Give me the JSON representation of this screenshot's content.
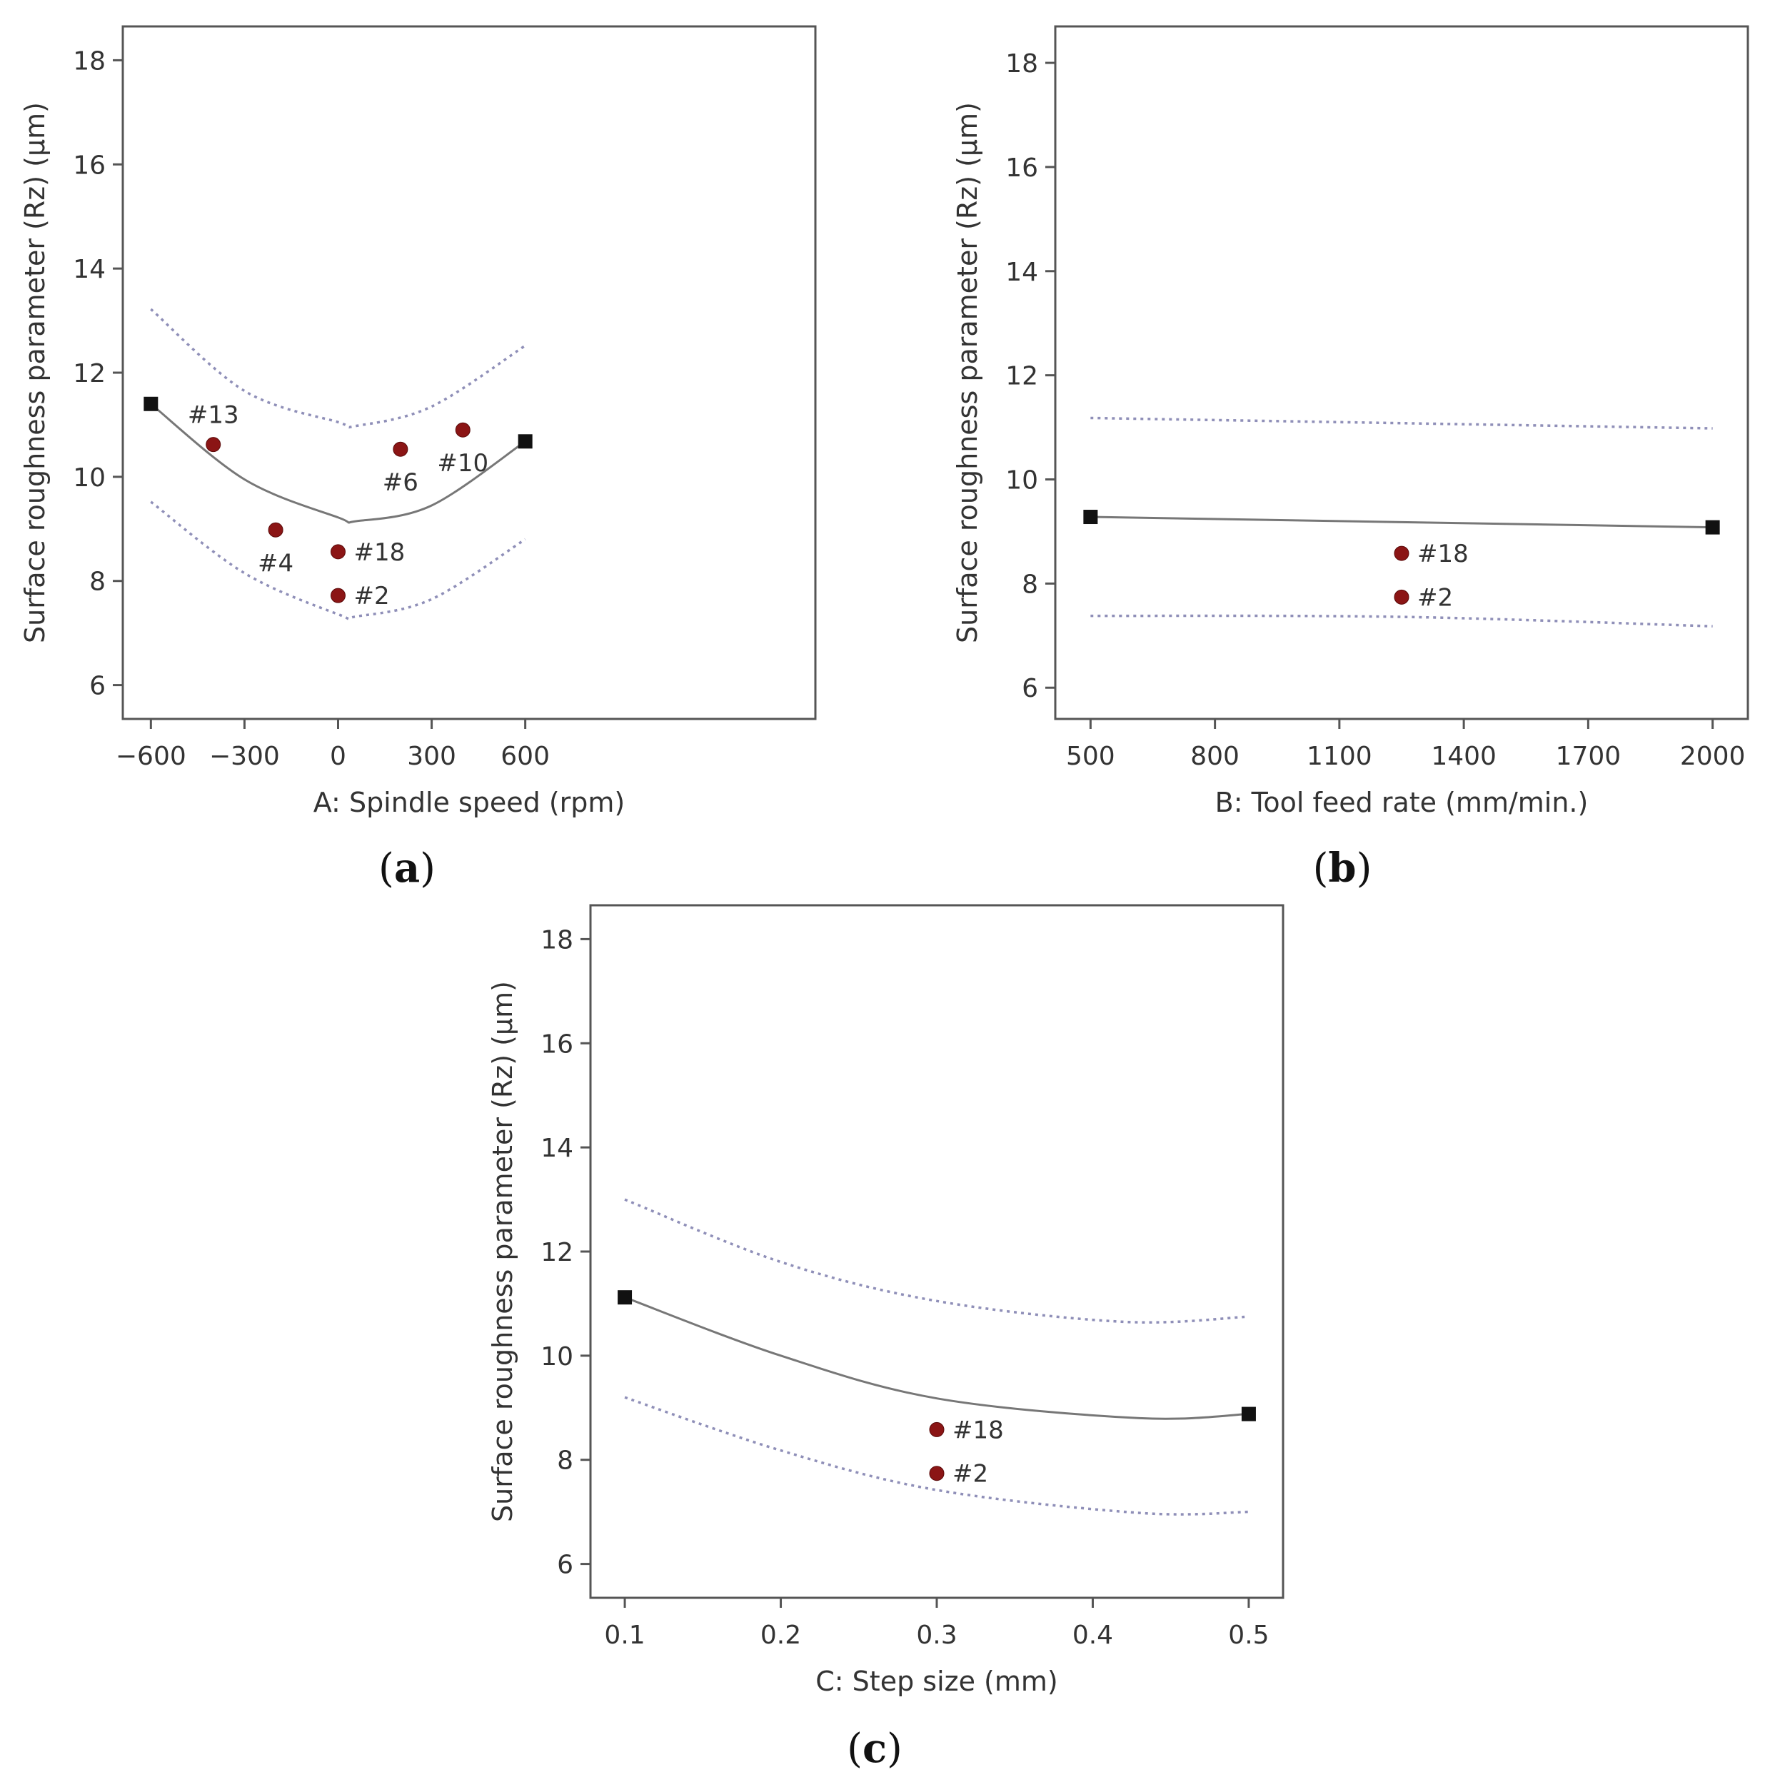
{
  "chart_data": [
    {
      "id": "a",
      "type": "line",
      "panel_label": "a",
      "xlabel": "A: Spindle speed (rpm)",
      "ylabel": "Surface roughness parameter (Rz) (µm)",
      "xlim": [
        -690,
        1530
      ],
      "ylim": [
        5.35,
        18.65
      ],
      "xticks": [
        -600,
        -300,
        0,
        300,
        600
      ],
      "xtick_labels": [
        "−600",
        "−300",
        "0",
        "300",
        "600"
      ],
      "yticks": [
        6,
        8,
        10,
        12,
        14,
        16,
        18
      ],
      "fit": {
        "x": [
          -600,
          -300,
          0,
          60,
          300,
          600
        ],
        "y": [
          11.4,
          9.95,
          9.22,
          9.15,
          9.45,
          10.68
        ]
      },
      "upper_ci": {
        "x": [
          -600,
          -300,
          0,
          60,
          300,
          600
        ],
        "y": [
          13.22,
          11.65,
          11.05,
          10.98,
          11.35,
          12.52
        ]
      },
      "lower_ci": {
        "x": [
          -600,
          -300,
          0,
          60,
          300,
          600
        ],
        "y": [
          9.52,
          8.15,
          7.36,
          7.32,
          7.65,
          8.8
        ]
      },
      "endpoints": [
        {
          "x": -600,
          "y": 11.4
        },
        {
          "x": 600,
          "y": 10.68
        }
      ],
      "points": [
        {
          "label": "#13",
          "x": -400,
          "y": 10.62,
          "label_pos": "above"
        },
        {
          "label": "#4",
          "x": -200,
          "y": 8.98,
          "label_pos": "below"
        },
        {
          "label": "#18",
          "x": 0,
          "y": 8.56,
          "label_pos": "right"
        },
        {
          "label": "#2",
          "x": 0,
          "y": 7.72,
          "label_pos": "right"
        },
        {
          "label": "#6",
          "x": 200,
          "y": 10.53,
          "label_pos": "below"
        },
        {
          "label": "#10",
          "x": 400,
          "y": 10.9,
          "label_pos": "below"
        }
      ]
    },
    {
      "id": "b",
      "type": "line",
      "panel_label": "b",
      "xlabel": "B: Tool feed rate (mm/min.)",
      "ylabel": "Surface roughness parameter (Rz) (µm)",
      "xlim": [
        415,
        2085
      ],
      "ylim": [
        5.4,
        18.7
      ],
      "xticks": [
        500,
        800,
        1100,
        1400,
        1700,
        2000
      ],
      "xtick_labels": [
        "500",
        "800",
        "1100",
        "1400",
        "1700",
        "2000"
      ],
      "yticks": [
        6,
        8,
        10,
        12,
        14,
        16,
        18
      ],
      "fit": {
        "x": [
          500,
          2000
        ],
        "y": [
          9.28,
          9.08
        ]
      },
      "upper_ci": {
        "x": [
          500,
          1250,
          2000
        ],
        "y": [
          11.18,
          11.08,
          10.98
        ]
      },
      "lower_ci": {
        "x": [
          500,
          1250,
          2000
        ],
        "y": [
          7.38,
          7.36,
          7.18
        ]
      },
      "endpoints": [
        {
          "x": 500,
          "y": 9.28
        },
        {
          "x": 2000,
          "y": 9.08
        }
      ],
      "points": [
        {
          "label": "#18",
          "x": 1250,
          "y": 8.58,
          "label_pos": "right"
        },
        {
          "label": "#2",
          "x": 1250,
          "y": 7.74,
          "label_pos": "right"
        }
      ]
    },
    {
      "id": "c",
      "type": "line",
      "panel_label": "c",
      "xlabel": "C: Step size (mm)",
      "ylabel": "Surface roughness parameter (Rz) (µm)",
      "xlim": [
        0.078,
        0.522
      ],
      "ylim": [
        5.35,
        18.65
      ],
      "xticks": [
        0.1,
        0.2,
        0.3,
        0.4,
        0.5
      ],
      "xtick_labels": [
        "0.1",
        "0.2",
        "0.3",
        "0.4",
        "0.5"
      ],
      "yticks": [
        6,
        8,
        10,
        12,
        14,
        16,
        18
      ],
      "fit": {
        "x": [
          0.1,
          0.2,
          0.3,
          0.43,
          0.5
        ],
        "y": [
          11.12,
          10.0,
          9.18,
          8.8,
          8.88
        ]
      },
      "upper_ci": {
        "x": [
          0.1,
          0.2,
          0.3,
          0.42,
          0.5
        ],
        "y": [
          13.0,
          11.8,
          11.05,
          10.65,
          10.75
        ]
      },
      "lower_ci": {
        "x": [
          0.1,
          0.2,
          0.3,
          0.43,
          0.5
        ],
        "y": [
          9.2,
          8.18,
          7.42,
          6.98,
          7.0
        ]
      },
      "endpoints": [
        {
          "x": 0.1,
          "y": 11.12
        },
        {
          "x": 0.5,
          "y": 8.88
        }
      ],
      "points": [
        {
          "label": "#18",
          "x": 0.3,
          "y": 8.58,
          "label_pos": "right"
        },
        {
          "label": "#2",
          "x": 0.3,
          "y": 7.74,
          "label_pos": "right"
        }
      ]
    }
  ]
}
